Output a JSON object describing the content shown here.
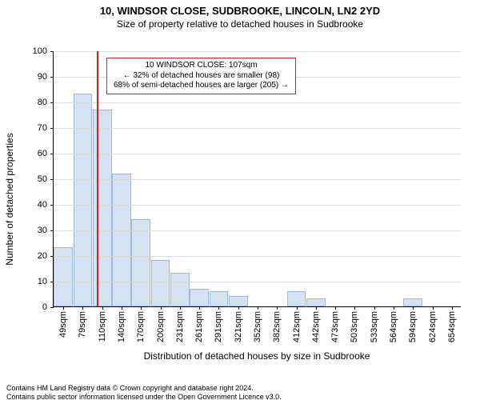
{
  "title": "10, WINDSOR CLOSE, SUDBROOKE, LINCOLN, LN2 2YD",
  "subtitle": "Size of property relative to detached houses in Sudbrooke",
  "ylabel": "Number of detached properties",
  "xlabel": "Distribution of detached houses by size in Sudbrooke",
  "attribution_line1": "Contains HM Land Registry data © Crown copyright and database right 2024.",
  "attribution_line2": "Contains public sector information licensed under the Open Government Licence v3.0.",
  "callout": {
    "line1": "10 WINDSOR CLOSE: 107sqm",
    "line2": "← 32% of detached houses are smaller (98)",
    "line3": "68% of semi-detached houses are larger (205) →"
  },
  "chart": {
    "type": "histogram",
    "background_color": "#ffffff",
    "grid_color": "#d9d9d9",
    "bar_fill": "#d6e2f2",
    "bar_stroke": "#9fb9dc",
    "marker_color": "#c1272d",
    "callout_border": "#c1272d",
    "ylim": [
      0,
      100
    ],
    "ytick_step": 10,
    "bar_width_ratio": 0.98,
    "x_min": 40,
    "x_bin_width": 30,
    "marker_x": 107,
    "categories": [
      "49sqm",
      "79sqm",
      "110sqm",
      "140sqm",
      "170sqm",
      "200sqm",
      "231sqm",
      "261sqm",
      "291sqm",
      "321sqm",
      "352sqm",
      "382sqm",
      "412sqm",
      "442sqm",
      "473sqm",
      "503sqm",
      "533sqm",
      "564sqm",
      "594sqm",
      "624sqm",
      "654sqm"
    ],
    "values": [
      23,
      83,
      77,
      52,
      34,
      18,
      13,
      7,
      6,
      4,
      0,
      0,
      6,
      3,
      0,
      0,
      0,
      0,
      3,
      0,
      0
    ],
    "title_fontsize": 13,
    "subtitle_fontsize": 12,
    "axis_label_fontsize": 12,
    "tick_fontsize": 11,
    "callout_fontsize": 10,
    "attribution_fontsize": 9
  }
}
